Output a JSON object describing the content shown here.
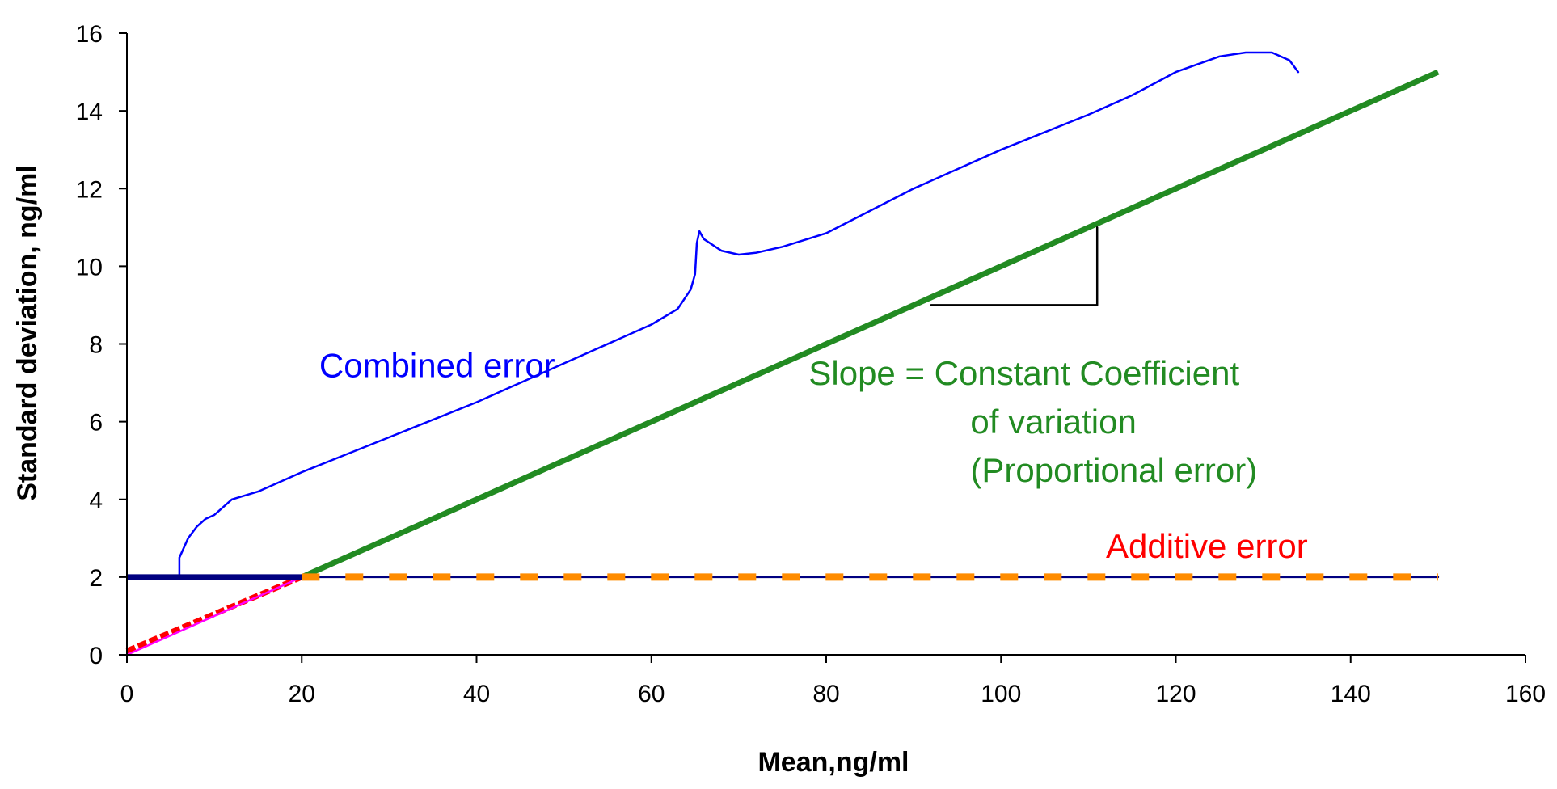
{
  "chart_data": {
    "type": "line",
    "title": "",
    "xlabel": "Mean,ng/ml",
    "ylabel": "Standard deviation, ng/ml",
    "xlim": [
      0,
      160
    ],
    "ylim": [
      0,
      16
    ],
    "x_ticks": [
      0,
      20,
      40,
      60,
      80,
      100,
      120,
      140,
      160
    ],
    "y_ticks": [
      0,
      2,
      4,
      6,
      8,
      10,
      12,
      14,
      16
    ],
    "grid": false,
    "legend": "none",
    "series": [
      {
        "color": "#0000ff",
        "style": "thin-solid",
        "points": [
          [
            6,
            2.0
          ],
          [
            6,
            2.5
          ],
          [
            7,
            3.0
          ],
          [
            8,
            3.3
          ],
          [
            9,
            3.5
          ],
          [
            10,
            3.6
          ],
          [
            12,
            4.0
          ],
          [
            15,
            4.2
          ],
          [
            20,
            4.7
          ],
          [
            25,
            5.15
          ],
          [
            30,
            5.6
          ],
          [
            40,
            6.5
          ],
          [
            50,
            7.5
          ],
          [
            60,
            8.5
          ],
          [
            63,
            8.9
          ],
          [
            64.5,
            9.4
          ],
          [
            65,
            9.8
          ],
          [
            65.2,
            10.6
          ],
          [
            65.5,
            10.9
          ],
          [
            66,
            10.7
          ],
          [
            68,
            10.4
          ],
          [
            70,
            10.3
          ],
          [
            72,
            10.35
          ],
          [
            75,
            10.5
          ],
          [
            80,
            10.85
          ],
          [
            90,
            12.0
          ],
          [
            100,
            13.0
          ],
          [
            110,
            13.9
          ],
          [
            115,
            14.4
          ],
          [
            120,
            15.0
          ],
          [
            125,
            15.4
          ],
          [
            128,
            15.5
          ],
          [
            131,
            15.5
          ],
          [
            133,
            15.3
          ],
          [
            134,
            15.0
          ]
        ]
      },
      {
        "color": "#228b22",
        "style": "thick-solid",
        "points": [
          [
            20,
            2
          ],
          [
            150,
            15
          ]
        ]
      },
      {
        "color": "#ff0000",
        "style": "thick-stepped",
        "points": [
          [
            0,
            0.1
          ],
          [
            20,
            2
          ]
        ]
      },
      {
        "color": "#ff00ff",
        "style": "thin-solid",
        "points": [
          [
            0,
            0
          ],
          [
            20,
            2
          ]
        ]
      },
      {
        "color": "#000080",
        "style": "thin-solid",
        "points": [
          [
            0,
            2
          ],
          [
            150,
            2
          ]
        ]
      },
      {
        "color": "#000080",
        "style": "thick-solid",
        "points": [
          [
            0,
            2
          ],
          [
            20,
            2
          ]
        ]
      },
      {
        "color": "#ff8c00",
        "style": "thick-dashed",
        "points": [
          [
            20,
            2
          ],
          [
            150,
            2
          ]
        ]
      },
      {
        "color": "#000000",
        "style": "thin-solid",
        "points": [
          [
            92,
            9.0
          ],
          [
            111,
            9.0
          ],
          [
            111,
            11.0
          ]
        ]
      }
    ],
    "annotations": [
      {
        "text": "Combined error",
        "color": "#0000ff",
        "x": 22,
        "y": 7.15
      },
      {
        "text": "Slope =  Constant Coefficient",
        "color": "#228b22",
        "x": 78,
        "y": 6.95
      },
      {
        "text": "of variation",
        "color": "#228b22",
        "x": 96.5,
        "y": 5.7
      },
      {
        "text": "(Proportional error)",
        "color": "#228b22",
        "x": 96.5,
        "y": 4.45
      },
      {
        "text": "Additive error",
        "color": "#ff0000",
        "x": 112,
        "y": 2.5
      }
    ]
  }
}
